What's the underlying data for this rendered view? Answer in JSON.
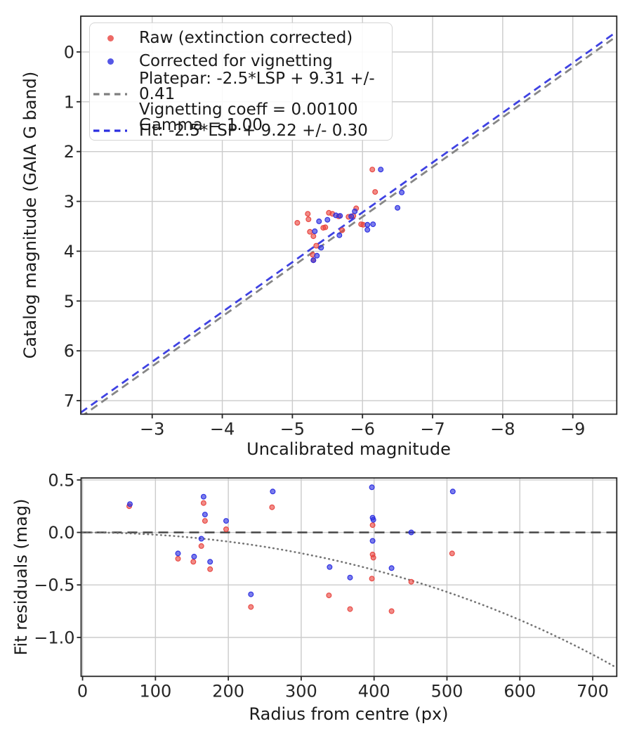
{
  "figure": {
    "background": "#ffffff"
  },
  "colors": {
    "raw_red": "#e8433e",
    "corrected_blue": "#2a2de0",
    "platepar_gray": "#7f7f7f",
    "fit_blue": "#2a2de0",
    "zero_line": "#3d3d3d",
    "vignette_dotted": "#6e6e6e",
    "grid": "#cbcbcb",
    "frame": "#262626",
    "tick_text": "#262626"
  },
  "chart_data": [
    {
      "type": "scatter",
      "title": "",
      "xlabel": "Uncalibrated magnitude",
      "ylabel": "Catalog magnitude (GAIA G band)",
      "x_inverted": true,
      "y_inverted": true,
      "xlim": [
        -1.981,
        -9.627
      ],
      "ylim": [
        -0.718,
        7.272
      ],
      "xticks": {
        "values": [
          -3,
          -4,
          -5,
          -6,
          -7,
          -8,
          -9
        ],
        "labels": [
          "−3",
          "−4",
          "−5",
          "−6",
          "−7",
          "−8",
          "−9"
        ]
      },
      "yticks": {
        "values": [
          0,
          1,
          2,
          3,
          4,
          5,
          6,
          7
        ],
        "labels": [
          "0",
          "1",
          "2",
          "3",
          "4",
          "5",
          "6",
          "7"
        ]
      },
      "grid": true,
      "legend_position": "upper left",
      "legend": [
        {
          "label": "Raw (extinction corrected)",
          "marker": "dot",
          "color": "#e8433e"
        },
        {
          "label": "Corrected for vignetting",
          "marker": "dot",
          "color": "#2a2de0"
        },
        {
          "label": "Platepar: -2.5*LSP + 9.31 +/- 0.41\nVignetting coeff = 0.00100\nGamma = 1.00",
          "marker": "dash",
          "color": "#7f7f7f"
        },
        {
          "label": "Fit: -2.5*LSP + 9.22 +/- 0.30",
          "marker": "dash",
          "color": "#2a2de0"
        }
      ],
      "lines": [
        {
          "name": "platepar-line",
          "kind": "affine",
          "slope": 1,
          "intercept": 9.31,
          "color": "#7f7f7f",
          "dash": [
            11,
            7
          ],
          "width": 2.8,
          "opacity": 0.95
        },
        {
          "name": "fit-line",
          "kind": "affine",
          "slope": 1,
          "intercept": 9.22,
          "color": "#2a2de0",
          "dash": [
            11,
            7
          ],
          "width": 2.8,
          "opacity": 0.9
        }
      ],
      "series": [
        {
          "name": "raw",
          "color": "#e8433e",
          "points": [
            [
              -6.14,
              2.36
            ],
            [
              -6.18,
              2.81
            ],
            [
              -5.91,
              3.14
            ],
            [
              -5.07,
              3.43
            ],
            [
              -5.22,
              3.25
            ],
            [
              -5.23,
              3.36
            ],
            [
              -5.25,
              3.61
            ],
            [
              -5.3,
              3.7
            ],
            [
              -5.44,
              3.53
            ],
            [
              -5.47,
              3.52
            ],
            [
              -5.52,
              3.23
            ],
            [
              -5.57,
              3.25
            ],
            [
              -5.66,
              3.3
            ],
            [
              -5.71,
              3.58
            ],
            [
              -5.8,
              3.31
            ],
            [
              -5.87,
              3.29
            ],
            [
              -5.98,
              3.46
            ],
            [
              -6.01,
              3.47
            ],
            [
              -5.34,
              3.89
            ],
            [
              -5.29,
              4.07
            ],
            [
              -5.3,
              4.18
            ]
          ]
        },
        {
          "name": "corrected",
          "color": "#2a2de0",
          "points": [
            [
              -6.26,
              2.36
            ],
            [
              -6.56,
              2.82
            ],
            [
              -6.5,
              3.13
            ],
            [
              -5.32,
              3.6
            ],
            [
              -5.38,
              3.4
            ],
            [
              -5.5,
              3.37
            ],
            [
              -5.62,
              3.28
            ],
            [
              -5.68,
              3.29
            ],
            [
              -5.67,
              3.68
            ],
            [
              -5.84,
              3.3
            ],
            [
              -5.89,
              3.2
            ],
            [
              -6.07,
              3.47
            ],
            [
              -6.07,
              3.57
            ],
            [
              -6.15,
              3.46
            ],
            [
              -5.41,
              3.93
            ],
            [
              -5.35,
              4.09
            ],
            [
              -5.3,
              4.18
            ]
          ]
        }
      ]
    },
    {
      "type": "scatter",
      "title": "",
      "xlabel": "Radius from centre (px)",
      "ylabel": "Fit residuals (mag)",
      "x_inverted": false,
      "y_inverted": false,
      "xlim": [
        -2,
        733
      ],
      "ylim": [
        0.519,
        -1.371
      ],
      "xticks": {
        "values": [
          0,
          100,
          200,
          300,
          400,
          500,
          600,
          700
        ],
        "labels": [
          "0",
          "100",
          "200",
          "300",
          "400",
          "500",
          "600",
          "700"
        ]
      },
      "yticks": {
        "values": [
          0.5,
          0.0,
          -0.5,
          -1.0
        ],
        "labels": [
          "0.5",
          "0.0",
          "−0.5",
          "−1.0"
        ]
      },
      "grid": true,
      "lines": [
        {
          "name": "zero-line",
          "kind": "hline",
          "y": 0,
          "color": "#3d3d3d",
          "dash": [
            14,
            8
          ],
          "width": 2.4,
          "opacity": 0.95
        },
        {
          "name": "vignetting-curve",
          "kind": "vignette",
          "coeff": 0.001,
          "formula": "10*log10(cos(0.001*r))",
          "color": "#6e6e6e",
          "dash": [
            0.6,
            5.6
          ],
          "width": 2.6,
          "linecap": "round",
          "opacity": 0.95
        }
      ],
      "series": [
        {
          "name": "raw-residuals",
          "color": "#e8433e",
          "points": [
            [
              64,
              0.25
            ],
            [
              131,
              -0.25
            ],
            [
              152,
              -0.28
            ],
            [
              163,
              -0.13
            ],
            [
              166,
              0.28
            ],
            [
              168,
              0.11
            ],
            [
              175,
              -0.35
            ],
            [
              197,
              0.03
            ],
            [
              231,
              -0.71
            ],
            [
              260,
              0.24
            ],
            [
              338,
              -0.6
            ],
            [
              367,
              -0.73
            ],
            [
              398,
              0.07
            ],
            [
              398,
              -0.21
            ],
            [
              399,
              -0.24
            ],
            [
              397,
              -0.44
            ],
            [
              424,
              -0.75
            ],
            [
              451,
              -0.47
            ],
            [
              507,
              -0.2
            ]
          ]
        },
        {
          "name": "corrected-residuals",
          "color": "#2a2de0",
          "points": [
            [
              65,
              0.27
            ],
            [
              131,
              -0.2
            ],
            [
              153,
              -0.23
            ],
            [
              163,
              -0.06
            ],
            [
              166,
              0.34
            ],
            [
              168,
              0.17
            ],
            [
              175,
              -0.28
            ],
            [
              197,
              0.11
            ],
            [
              231,
              -0.59
            ],
            [
              261,
              0.39
            ],
            [
              339,
              -0.33
            ],
            [
              367,
              -0.43
            ],
            [
              397,
              0.43
            ],
            [
              398,
              0.14
            ],
            [
              399,
              0.12
            ],
            [
              398,
              -0.08
            ],
            [
              424,
              -0.34
            ],
            [
              451,
              0.0
            ],
            [
              508,
              0.39
            ]
          ]
        }
      ]
    }
  ]
}
